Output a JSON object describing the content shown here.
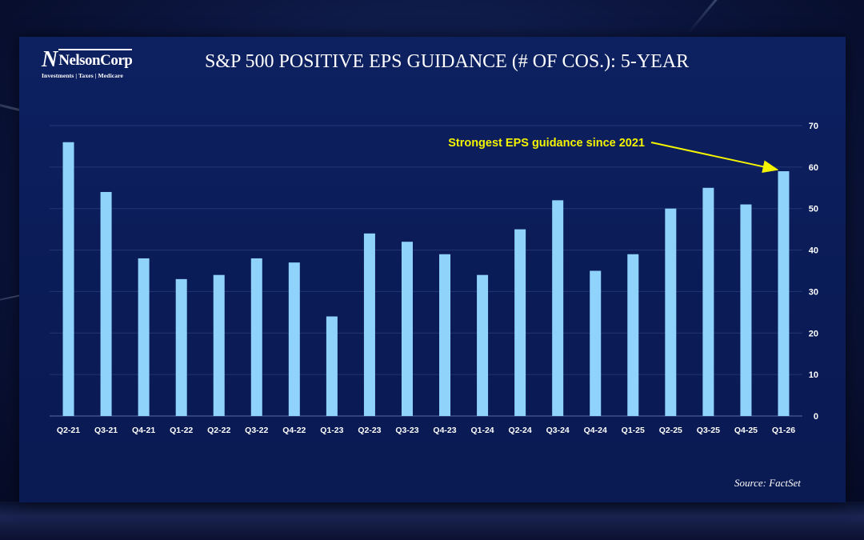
{
  "logo": {
    "mark": "N",
    "name": "NelsonCorp",
    "tagline": "Investments | Taxes | Medicare"
  },
  "source": "Source: FactSet",
  "colors": {
    "bar": "#8fd3fb",
    "annotation": "#f4f400",
    "background": "#0a1b56",
    "text": "#ffffff"
  },
  "chart_data": {
    "type": "bar",
    "title": "S&P 500 POSITIVE EPS GUIDANCE (# OF COS.): 5-YEAR",
    "categories": [
      "Q2-21",
      "Q3-21",
      "Q4-21",
      "Q1-22",
      "Q2-22",
      "Q3-22",
      "Q4-22",
      "Q1-23",
      "Q2-23",
      "Q3-23",
      "Q4-23",
      "Q1-24",
      "Q2-24",
      "Q3-24",
      "Q4-24",
      "Q1-25",
      "Q2-25",
      "Q3-25",
      "Q4-25",
      "Q1-26"
    ],
    "values": [
      66,
      54,
      38,
      33,
      34,
      38,
      37,
      24,
      44,
      42,
      39,
      34,
      45,
      52,
      35,
      39,
      50,
      55,
      51,
      59
    ],
    "ylim": [
      0,
      70
    ],
    "yticks": [
      0,
      10,
      20,
      30,
      40,
      50,
      60,
      70
    ],
    "y_axis_side": "right",
    "grid": true,
    "annotation": {
      "text": "Strongest EPS guidance since 2021",
      "target": "Q1-26"
    }
  }
}
